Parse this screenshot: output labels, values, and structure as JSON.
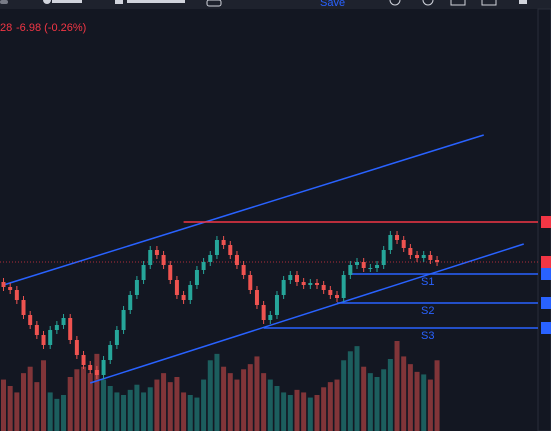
{
  "toolbar": {
    "save": "Save"
  },
  "legend": {
    "price": "28",
    "change": "-6.98 (-0.26%)"
  },
  "chart_data": {
    "type": "candlestick",
    "up_color": "#26a69a",
    "down_color": "#ef5350",
    "ylim": [
      2599.5,
      2815
    ],
    "candles": [
      [
        2674,
        2676,
        2669.5,
        2671.5
      ],
      [
        2671.5,
        2673.5,
        2668,
        2670
      ],
      [
        2670,
        2672,
        2663,
        2665
      ],
      [
        2665,
        2667,
        2655.5,
        2657.5
      ],
      [
        2657.5,
        2659.5,
        2650.5,
        2652.5
      ],
      [
        2652.5,
        2654.5,
        2645.5,
        2647.5
      ],
      [
        2647.5,
        2649.5,
        2640.5,
        2642.5
      ],
      [
        2642.5,
        2652,
        2640.5,
        2650
      ],
      [
        2650,
        2654.5,
        2648,
        2652.5
      ],
      [
        2652.5,
        2658,
        2650.5,
        2656
      ],
      [
        2656,
        2658,
        2643,
        2645
      ],
      [
        2645,
        2647,
        2635.5,
        2637.5
      ],
      [
        2637.5,
        2639.5,
        2630.5,
        2632.5
      ],
      [
        2632.5,
        2634.5,
        2628,
        2630
      ],
      [
        2630,
        2632,
        2625.5,
        2627.5
      ],
      [
        2627.5,
        2637,
        2625.5,
        2635
      ],
      [
        2635,
        2644.5,
        2633,
        2642.5
      ],
      [
        2642.5,
        2652,
        2640.5,
        2650
      ],
      [
        2650,
        2662,
        2648,
        2660
      ],
      [
        2660,
        2669.5,
        2658,
        2667.5
      ],
      [
        2667.5,
        2677,
        2665.5,
        2675
      ],
      [
        2675,
        2684.5,
        2673,
        2682.5
      ],
      [
        2682.5,
        2692,
        2680.5,
        2690
      ],
      [
        2690,
        2692,
        2685.5,
        2687.5
      ],
      [
        2687.5,
        2689.5,
        2680.5,
        2682.5
      ],
      [
        2682.5,
        2684.5,
        2673,
        2675
      ],
      [
        2675,
        2677,
        2665.5,
        2667.5
      ],
      [
        2667.5,
        2669.5,
        2663,
        2665
      ],
      [
        2665,
        2674.5,
        2663,
        2672.5
      ],
      [
        2672.5,
        2682,
        2670.5,
        2680
      ],
      [
        2680,
        2686,
        2678,
        2684
      ],
      [
        2684,
        2689.5,
        2682,
        2687.5
      ],
      [
        2687.5,
        2697,
        2685.5,
        2695
      ],
      [
        2695,
        2697,
        2690.5,
        2692.5
      ],
      [
        2692.5,
        2694.5,
        2685.5,
        2687.5
      ],
      [
        2687.5,
        2689.5,
        2680.5,
        2682.5
      ],
      [
        2682.5,
        2684.5,
        2675.5,
        2677.5
      ],
      [
        2677.5,
        2679.5,
        2668,
        2670
      ],
      [
        2670,
        2672,
        2660.5,
        2662.5
      ],
      [
        2662.5,
        2664.5,
        2653,
        2655
      ],
      [
        2655,
        2659.5,
        2653,
        2657.5
      ],
      [
        2657.5,
        2669.5,
        2655.5,
        2667.5
      ],
      [
        2667.5,
        2677,
        2665.5,
        2675
      ],
      [
        2675,
        2679.5,
        2673,
        2677.5
      ],
      [
        2677.5,
        2679.5,
        2672,
        2674
      ],
      [
        2674,
        2676,
        2670.5,
        2672.5
      ],
      [
        2672.5,
        2675.5,
        2670.5,
        2673.5
      ],
      [
        2673.5,
        2675.5,
        2670.5,
        2672.5
      ],
      [
        2672.5,
        2674.5,
        2668,
        2670
      ],
      [
        2670,
        2672,
        2665.5,
        2667.5
      ],
      [
        2667.5,
        2669.5,
        2664,
        2666
      ],
      [
        2666,
        2679.5,
        2664,
        2677.5
      ],
      [
        2677.5,
        2684.5,
        2675.5,
        2682.5
      ],
      [
        2682.5,
        2686,
        2680.5,
        2684
      ],
      [
        2684,
        2686,
        2679,
        2681
      ],
      [
        2681,
        2683,
        2679,
        2681
      ],
      [
        2681,
        2684.5,
        2679,
        2682.5
      ],
      [
        2682.5,
        2692,
        2680.5,
        2690
      ],
      [
        2690,
        2699.5,
        2688,
        2697.5
      ],
      [
        2697.5,
        2699.5,
        2693,
        2695
      ],
      [
        2695,
        2697,
        2689,
        2691
      ],
      [
        2691,
        2693,
        2685.5,
        2687.5
      ],
      [
        2687.5,
        2689.5,
        2684,
        2686
      ],
      [
        2686,
        2689.5,
        2684,
        2687.5
      ],
      [
        2687.5,
        2689.5,
        2683,
        2685
      ],
      [
        2685,
        2687,
        2682,
        2684
      ]
    ],
    "volumes": [
      40,
      35,
      30,
      45,
      50,
      38,
      55,
      30,
      25,
      28,
      42,
      48,
      50,
      45,
      60,
      40,
      35,
      30,
      28,
      32,
      36,
      30,
      34,
      40,
      45,
      38,
      42,
      30,
      28,
      26,
      40,
      55,
      60,
      50,
      45,
      40,
      48,
      52,
      58,
      45,
      40,
      35,
      30,
      28,
      32,
      30,
      26,
      28,
      34,
      38,
      40,
      55,
      62,
      66,
      50,
      45,
      42,
      48,
      56,
      70,
      58,
      52,
      46,
      44,
      40,
      55
    ],
    "levels": [
      {
        "price": 2704,
        "color": "#f23645",
        "from": 27
      },
      {
        "name": "S1",
        "price": 2678,
        "color": "#2962ff",
        "from": 52
      },
      {
        "name": "S2",
        "price": 2663.5,
        "color": "#2962ff",
        "from": 50
      },
      {
        "name": "S3",
        "price": 2651,
        "color": "#2962ff",
        "from": 39
      }
    ],
    "trendlines": [
      {
        "from": [
          0,
          2672.5
        ],
        "to": [
          72,
          2747.5
        ],
        "color": "#2962ff"
      },
      {
        "from": [
          13,
          2623.5
        ],
        "to": [
          78,
          2693
        ],
        "color": "#2962ff"
      }
    ]
  }
}
